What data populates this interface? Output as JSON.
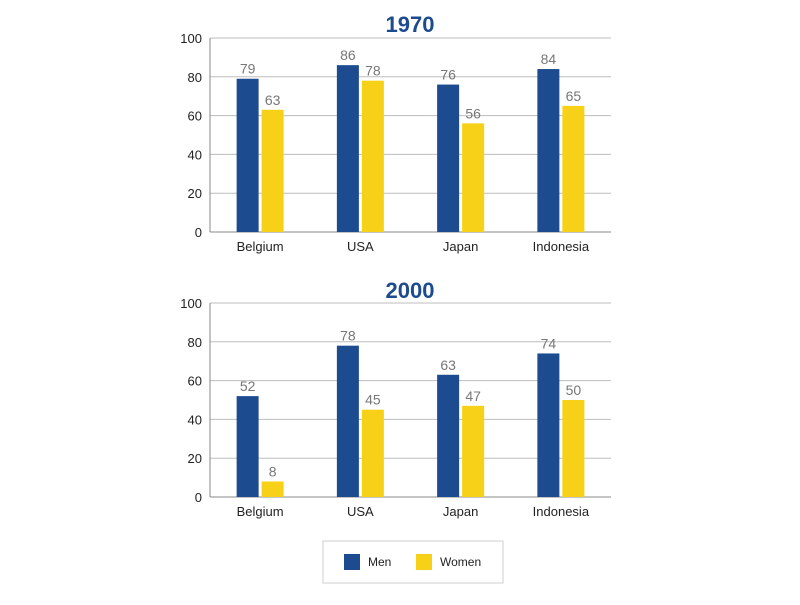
{
  "chart_data": [
    {
      "type": "bar",
      "title": "1970",
      "categories": [
        "Belgium",
        "USA",
        "Japan",
        "Indonesia"
      ],
      "series": [
        {
          "name": "Men",
          "values": [
            79,
            86,
            76,
            84
          ]
        },
        {
          "name": "Women",
          "values": [
            63,
            78,
            56,
            65
          ]
        }
      ],
      "ylim": [
        0,
        100
      ],
      "yticks": [
        0,
        20,
        40,
        60,
        80,
        100
      ],
      "xlabel": "",
      "ylabel": "",
      "grid": true
    },
    {
      "type": "bar",
      "title": "2000",
      "categories": [
        "Belgium",
        "USA",
        "Japan",
        "Indonesia"
      ],
      "series": [
        {
          "name": "Men",
          "values": [
            52,
            78,
            63,
            74
          ]
        },
        {
          "name": "Women",
          "values": [
            8,
            45,
            47,
            50
          ]
        }
      ],
      "ylim": [
        0,
        100
      ],
      "yticks": [
        0,
        20,
        40,
        60,
        80,
        100
      ],
      "xlabel": "",
      "ylabel": "",
      "grid": true
    }
  ],
  "legend": {
    "placement": "bottom-center",
    "items": [
      {
        "label": "Men",
        "color": "#1d4b8f"
      },
      {
        "label": "Women",
        "color": "#f7d117"
      }
    ]
  },
  "colors": {
    "men": "#1d4b8f",
    "women": "#f7d117",
    "title": "#1d4b8f"
  }
}
